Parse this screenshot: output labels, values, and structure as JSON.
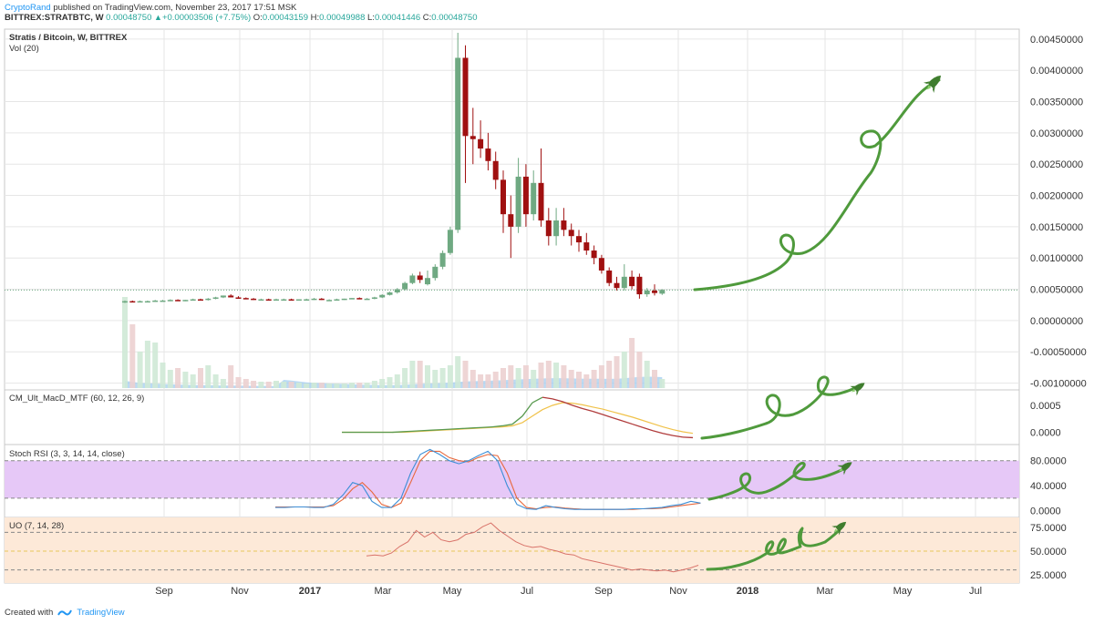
{
  "header": {
    "author": "CryptoRand",
    "published": "published on TradingView.com, November 23, 2017 17:51 MSK",
    "symbol": "BITTREX:STRATBTC, W",
    "last": "0.00048750",
    "change": "+0.00003506 (+7.75%)",
    "o_label": "O:",
    "o": "0.00043159",
    "h_label": "H:",
    "h": "0.00049988",
    "l_label": "L:",
    "l": "0.00041446",
    "c_label": "C:",
    "c": "0.00048750"
  },
  "footer": {
    "created": "Created with",
    "brand": "TradingView"
  },
  "colors": {
    "up": "#6fa982",
    "down": "#a01010",
    "grid": "#e6e6e6",
    "accent": "#2196f3",
    "macd_up": "#5a9a50",
    "macd_down": "#b03b3b",
    "signal": "#f0c24a",
    "rsi_k": "#3c8ed6",
    "rsi_d": "#e8683c",
    "rsi_fill": "#e6c8f7",
    "uo_line": "#d9736a",
    "uo_fill": "#fde9d8",
    "doodle": "#4f9a3c",
    "rocket": "#3f7d2e"
  },
  "chart_data": [
    {
      "type": "candlestick",
      "title": "Stratis / Bitcoin, W, BITTREX",
      "volume_label": "Vol (20)",
      "xlabels": [
        "Sep",
        "Nov",
        "2017",
        "Mar",
        "May",
        "Jul",
        "Sep",
        "Nov",
        "2018",
        "Mar",
        "May",
        "Jul"
      ],
      "yticks": [
        "0.00450000",
        "0.00400000",
        "0.00350000",
        "0.00300000",
        "0.00250000",
        "0.00200000",
        "0.00150000",
        "0.00100000",
        "0.00050000",
        "0.00000000",
        "-0.00050000",
        "-0.00100000"
      ],
      "ylim": [
        -0.00105,
        0.0046
      ],
      "current_price": 0.0004875,
      "volume_max": 1.0,
      "candles": [
        {
          "o": 0.0003,
          "h": 0.00032,
          "l": 0.00028,
          "c": 0.00031,
          "v": 1.0
        },
        {
          "o": 0.00031,
          "h": 0.00032,
          "l": 0.00029,
          "c": 0.0003,
          "v": 0.7
        },
        {
          "o": 0.0003,
          "h": 0.00032,
          "l": 0.00029,
          "c": 0.00031,
          "v": 0.4
        },
        {
          "o": 0.00031,
          "h": 0.00032,
          "l": 0.0003,
          "c": 0.00031,
          "v": 0.52
        },
        {
          "o": 0.00031,
          "h": 0.00033,
          "l": 0.0003,
          "c": 0.00032,
          "v": 0.5
        },
        {
          "o": 0.00032,
          "h": 0.00033,
          "l": 0.00031,
          "c": 0.00032,
          "v": 0.28
        },
        {
          "o": 0.00032,
          "h": 0.00034,
          "l": 0.00031,
          "c": 0.00033,
          "v": 0.2
        },
        {
          "o": 0.00033,
          "h": 0.00034,
          "l": 0.00032,
          "c": 0.00032,
          "v": 0.22
        },
        {
          "o": 0.00032,
          "h": 0.00033,
          "l": 0.00031,
          "c": 0.00033,
          "v": 0.18
        },
        {
          "o": 0.00033,
          "h": 0.00035,
          "l": 0.00032,
          "c": 0.00034,
          "v": 0.15
        },
        {
          "o": 0.00034,
          "h": 0.00035,
          "l": 0.00032,
          "c": 0.00033,
          "v": 0.22
        },
        {
          "o": 0.00033,
          "h": 0.00036,
          "l": 0.00032,
          "c": 0.00035,
          "v": 0.25
        },
        {
          "o": 0.00035,
          "h": 0.00038,
          "l": 0.00034,
          "c": 0.00037,
          "v": 0.15
        },
        {
          "o": 0.00037,
          "h": 0.0004,
          "l": 0.00036,
          "c": 0.0004,
          "v": 0.1
        },
        {
          "o": 0.0004,
          "h": 0.00042,
          "l": 0.00037,
          "c": 0.00037,
          "v": 0.25
        },
        {
          "o": 0.00037,
          "h": 0.00039,
          "l": 0.00035,
          "c": 0.00036,
          "v": 0.12
        },
        {
          "o": 0.00036,
          "h": 0.00037,
          "l": 0.00034,
          "c": 0.00035,
          "v": 0.1
        },
        {
          "o": 0.00035,
          "h": 0.00036,
          "l": 0.00033,
          "c": 0.00034,
          "v": 0.08
        },
        {
          "o": 0.00034,
          "h": 0.00035,
          "l": 0.00033,
          "c": 0.00034,
          "v": 0.07
        },
        {
          "o": 0.00034,
          "h": 0.00035,
          "l": 0.00033,
          "c": 0.00033,
          "v": 0.07
        },
        {
          "o": 0.00033,
          "h": 0.00035,
          "l": 0.00032,
          "c": 0.00034,
          "v": 0.08
        },
        {
          "o": 0.00034,
          "h": 0.00035,
          "l": 0.00033,
          "c": 0.00034,
          "v": 0.07
        },
        {
          "o": 0.00034,
          "h": 0.00035,
          "l": 0.00033,
          "c": 0.00033,
          "v": 0.07
        },
        {
          "o": 0.00033,
          "h": 0.00034,
          "l": 0.00032,
          "c": 0.00034,
          "v": 0.06
        },
        {
          "o": 0.00034,
          "h": 0.00035,
          "l": 0.00033,
          "c": 0.00034,
          "v": 0.05
        },
        {
          "o": 0.00034,
          "h": 0.00036,
          "l": 0.00033,
          "c": 0.00035,
          "v": 0.06
        },
        {
          "o": 0.00035,
          "h": 0.00036,
          "l": 0.00033,
          "c": 0.00033,
          "v": 0.06
        },
        {
          "o": 0.00033,
          "h": 0.00034,
          "l": 0.00032,
          "c": 0.00033,
          "v": 0.05
        },
        {
          "o": 0.00033,
          "h": 0.00035,
          "l": 0.00032,
          "c": 0.00034,
          "v": 0.05
        },
        {
          "o": 0.00034,
          "h": 0.00035,
          "l": 0.00033,
          "c": 0.00035,
          "v": 0.05
        },
        {
          "o": 0.00035,
          "h": 0.00036,
          "l": 0.00034,
          "c": 0.00036,
          "v": 0.06
        },
        {
          "o": 0.00036,
          "h": 0.00037,
          "l": 0.00034,
          "c": 0.00035,
          "v": 0.06
        },
        {
          "o": 0.00035,
          "h": 0.00036,
          "l": 0.00034,
          "c": 0.00035,
          "v": 0.06
        },
        {
          "o": 0.00035,
          "h": 0.00038,
          "l": 0.00034,
          "c": 0.00037,
          "v": 0.08
        },
        {
          "o": 0.00037,
          "h": 0.00042,
          "l": 0.00036,
          "c": 0.00041,
          "v": 0.1
        },
        {
          "o": 0.00041,
          "h": 0.00046,
          "l": 0.0004,
          "c": 0.00045,
          "v": 0.12
        },
        {
          "o": 0.00045,
          "h": 0.00052,
          "l": 0.00043,
          "c": 0.0005,
          "v": 0.15
        },
        {
          "o": 0.0005,
          "h": 0.00062,
          "l": 0.00048,
          "c": 0.0006,
          "v": 0.22
        },
        {
          "o": 0.0006,
          "h": 0.00075,
          "l": 0.00058,
          "c": 0.00072,
          "v": 0.3
        },
        {
          "o": 0.00072,
          "h": 0.00078,
          "l": 0.0006,
          "c": 0.00065,
          "v": 0.3
        },
        {
          "o": 0.00058,
          "h": 0.0008,
          "l": 0.00056,
          "c": 0.00068,
          "v": 0.25
        },
        {
          "o": 0.00068,
          "h": 0.0009,
          "l": 0.00064,
          "c": 0.00086,
          "v": 0.2
        },
        {
          "o": 0.00086,
          "h": 0.00112,
          "l": 0.00082,
          "c": 0.00108,
          "v": 0.22
        },
        {
          "o": 0.00108,
          "h": 0.0015,
          "l": 0.00105,
          "c": 0.00145,
          "v": 0.25
        },
        {
          "o": 0.00145,
          "h": 0.0046,
          "l": 0.0014,
          "c": 0.0042,
          "v": 0.35
        },
        {
          "o": 0.0042,
          "h": 0.0044,
          "l": 0.0022,
          "c": 0.00295,
          "v": 0.3
        },
        {
          "o": 0.00295,
          "h": 0.0034,
          "l": 0.0025,
          "c": 0.0029,
          "v": 0.2
        },
        {
          "o": 0.0029,
          "h": 0.0032,
          "l": 0.0026,
          "c": 0.00275,
          "v": 0.15
        },
        {
          "o": 0.00275,
          "h": 0.003,
          "l": 0.0024,
          "c": 0.00255,
          "v": 0.15
        },
        {
          "o": 0.00255,
          "h": 0.0027,
          "l": 0.0021,
          "c": 0.00225,
          "v": 0.18
        },
        {
          "o": 0.00225,
          "h": 0.0024,
          "l": 0.0014,
          "c": 0.0017,
          "v": 0.22
        },
        {
          "o": 0.0017,
          "h": 0.002,
          "l": 0.001,
          "c": 0.0015,
          "v": 0.25
        },
        {
          "o": 0.0015,
          "h": 0.0026,
          "l": 0.0014,
          "c": 0.0023,
          "v": 0.22
        },
        {
          "o": 0.0023,
          "h": 0.0025,
          "l": 0.0015,
          "c": 0.0017,
          "v": 0.25
        },
        {
          "o": 0.0017,
          "h": 0.0024,
          "l": 0.0016,
          "c": 0.0022,
          "v": 0.2
        },
        {
          "o": 0.0022,
          "h": 0.00275,
          "l": 0.0015,
          "c": 0.0016,
          "v": 0.28
        },
        {
          "o": 0.0016,
          "h": 0.0018,
          "l": 0.0012,
          "c": 0.00135,
          "v": 0.3
        },
        {
          "o": 0.00135,
          "h": 0.0018,
          "l": 0.0012,
          "c": 0.0016,
          "v": 0.28
        },
        {
          "o": 0.0016,
          "h": 0.0018,
          "l": 0.00135,
          "c": 0.00145,
          "v": 0.25
        },
        {
          "o": 0.00145,
          "h": 0.00155,
          "l": 0.0012,
          "c": 0.00135,
          "v": 0.2
        },
        {
          "o": 0.00135,
          "h": 0.00145,
          "l": 0.0011,
          "c": 0.00125,
          "v": 0.18
        },
        {
          "o": 0.00125,
          "h": 0.0014,
          "l": 0.00105,
          "c": 0.00112,
          "v": 0.15
        },
        {
          "o": 0.00112,
          "h": 0.0012,
          "l": 0.0009,
          "c": 0.001,
          "v": 0.2
        },
        {
          "o": 0.001,
          "h": 0.00105,
          "l": 0.00075,
          "c": 0.0008,
          "v": 0.25
        },
        {
          "o": 0.0008,
          "h": 0.00085,
          "l": 0.00055,
          "c": 0.0006,
          "v": 0.3
        },
        {
          "o": 0.0006,
          "h": 0.0007,
          "l": 0.00048,
          "c": 0.00052,
          "v": 0.35
        },
        {
          "o": 0.00052,
          "h": 0.0009,
          "l": 0.00048,
          "c": 0.0007,
          "v": 0.4
        },
        {
          "o": 0.0007,
          "h": 0.0008,
          "l": 0.0005,
          "c": 0.00055,
          "v": 0.55
        },
        {
          "o": 0.0007,
          "h": 0.00075,
          "l": 0.00035,
          "c": 0.00042,
          "v": 0.4
        },
        {
          "o": 0.00042,
          "h": 0.00052,
          "l": 0.00038,
          "c": 0.00048,
          "v": 0.3
        },
        {
          "o": 0.00048,
          "h": 0.00058,
          "l": 0.0004,
          "c": 0.00044,
          "v": 0.2
        },
        {
          "o": 0.00043,
          "h": 0.0005,
          "l": 0.00041,
          "c": 0.00049,
          "v": 0.1
        }
      ]
    },
    {
      "type": "line",
      "title": "CM_Ult_MacD_MTF (60, 12, 26, 9)",
      "yticks": [
        "0.0005",
        "0.0000"
      ],
      "ylim": [
        -0.00016,
        0.00072
      ],
      "series": [
        {
          "values": [
            0,
            0,
            0,
            0,
            0,
            0,
            1e-05,
            2e-05,
            3e-05,
            4e-05,
            5e-05,
            6e-05,
            7e-05,
            8e-05,
            9e-05,
            0.0001,
            0.00012,
            0.00015,
            0.0003,
            0.00055,
            0.00065,
            0.00062,
            0.00057,
            0.0005,
            0.00044,
            0.00039,
            0.00033,
            0.00027,
            0.00021,
            0.00015,
            9e-05,
            3e-05,
            -2e-05,
            -6e-05,
            -9e-05,
            -0.0001
          ]
        },
        {
          "values": [
            0,
            0,
            0,
            0,
            0,
            0,
            0,
            1e-05,
            2e-05,
            3e-05,
            4e-05,
            5e-05,
            6e-05,
            7e-05,
            8e-05,
            9e-05,
            0.0001,
            0.00012,
            0.00018,
            0.0003,
            0.00042,
            0.0005,
            0.00055,
            0.00054,
            0.00051,
            0.00047,
            0.00043,
            0.00038,
            0.00033,
            0.00028,
            0.00022,
            0.00016,
            0.0001,
            5e-05,
            1e-05,
            -2e-05
          ]
        }
      ]
    },
    {
      "type": "line",
      "title": "Stoch RSI (3, 3, 14, 14, close)",
      "yticks": [
        "80.0000",
        "40.0000",
        "0.0000"
      ],
      "ylim": [
        -5,
        100
      ],
      "band": [
        20,
        80
      ],
      "series": [
        {
          "values": [
            5,
            5,
            6,
            6,
            5,
            5,
            10,
            25,
            45,
            40,
            15,
            5,
            5,
            20,
            60,
            90,
            98,
            90,
            80,
            75,
            80,
            88,
            95,
            80,
            40,
            10,
            3,
            2,
            8,
            5,
            3,
            2,
            2,
            2,
            2,
            2,
            2,
            3,
            3,
            4,
            5,
            8,
            10,
            15,
            12
          ]
        },
        {
          "values": [
            6,
            6,
            6,
            6,
            6,
            6,
            8,
            18,
            35,
            45,
            30,
            10,
            5,
            12,
            45,
            80,
            95,
            95,
            85,
            80,
            78,
            85,
            90,
            88,
            60,
            20,
            5,
            3,
            5,
            6,
            4,
            3,
            2,
            2,
            2,
            2,
            2,
            2,
            3,
            3,
            4,
            6,
            8,
            10,
            12
          ]
        }
      ]
    },
    {
      "type": "line",
      "title": "UO (7, 14, 28)",
      "yticks": [
        "75.0000",
        "50.0000",
        "25.0000"
      ],
      "ylim": [
        20,
        82
      ],
      "band": [
        30,
        70
      ],
      "series": [
        {
          "values": [
            45,
            46,
            45,
            48,
            55,
            60,
            72,
            65,
            70,
            62,
            60,
            62,
            68,
            70,
            76,
            80,
            72,
            66,
            60,
            56,
            54,
            55,
            52,
            50,
            47,
            46,
            42,
            40,
            38,
            36,
            34,
            32,
            30,
            31,
            30,
            29,
            30,
            28,
            30,
            32,
            35
          ]
        }
      ]
    }
  ]
}
